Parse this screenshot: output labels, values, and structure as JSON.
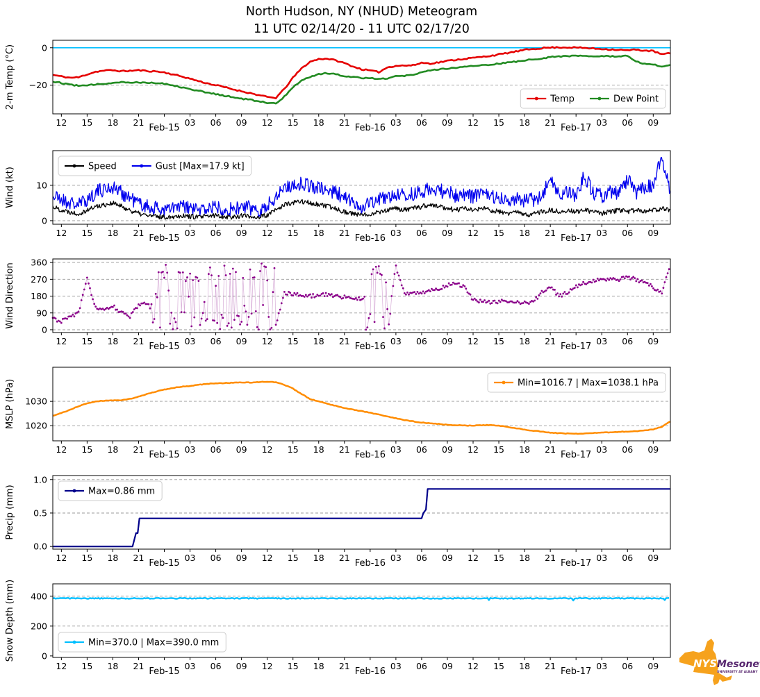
{
  "title": {
    "line1": "North Hudson, NY (NHUD) Meteogram",
    "line2": "11 UTC 02/14/20 - 11 UTC 02/17/20"
  },
  "x_axis": {
    "start": "11 UTC 02/14/20",
    "end": "11 UTC 02/17/20",
    "span_hours": 72,
    "tick_hours": [
      1,
      4,
      7,
      10,
      13,
      16,
      19,
      22,
      25,
      28,
      31,
      34,
      37,
      40,
      43,
      46,
      49,
      52,
      55,
      58,
      61,
      64,
      67,
      70
    ],
    "tick_labels": [
      "12",
      "15",
      "18",
      "21",
      "Feb-15",
      "03",
      "06",
      "09",
      "12",
      "15",
      "18",
      "21",
      "Feb-16",
      "03",
      "06",
      "09",
      "12",
      "15",
      "18",
      "21",
      "Feb-17",
      "03",
      "06",
      "09"
    ]
  },
  "logo": {
    "nys": "NYS",
    "mesonet": "Mesonet",
    "subtext": "UNIVERSITY AT ALBANY",
    "gold": "#F6A21D",
    "purple": "#56256E"
  },
  "chart_data": [
    {
      "type": "line",
      "panel_name": "temp-panel",
      "ylabel": "2-m Temp (°C)",
      "x_unit": "hours since 11 UTC 02/14/20, hourly keypoints",
      "ylim": [
        -35.3,
        4.0
      ],
      "yticks": [
        0,
        -20
      ],
      "ytick_labels": [
        "0",
        "−20"
      ],
      "grid_ticks": [
        -20
      ],
      "refline": {
        "value": 0,
        "color": "#00BFFF"
      },
      "legend": {
        "position": "bottom-right",
        "items": [
          {
            "label": "Temp",
            "color": "#E50000"
          },
          {
            "label": "Dew Point",
            "color": "#228B22"
          }
        ]
      },
      "series": [
        {
          "name": "temp",
          "color": "#E50000",
          "width": 2.6,
          "noise": 0.35,
          "seed": 11,
          "res": 0.25,
          "values": [
            -14.5,
            -15.3,
            -16,
            -15.8,
            -14.2,
            -12.8,
            -12.2,
            -12,
            -12.5,
            -12.3,
            -12,
            -12.4,
            -12.6,
            -13.2,
            -14.2,
            -15.3,
            -16.5,
            -17.8,
            -19,
            -20,
            -21,
            -22.2,
            -23.2,
            -24.2,
            -25.3,
            -26.3,
            -26.8,
            -22,
            -16,
            -11,
            -7.5,
            -6,
            -5.8,
            -6.8,
            -8.2,
            -10,
            -11.5,
            -12.2,
            -13,
            -10.5,
            -9.6,
            -9.5,
            -9.4,
            -8,
            -8.4,
            -7.8,
            -7,
            -6.4,
            -5.9,
            -5.4,
            -4.9,
            -4.3,
            -3.6,
            -2.8,
            -2,
            -1.2,
            -0.6,
            -0.2,
            0.1,
            0.2,
            0.2,
            0.1,
            -0.1,
            -0.4,
            -0.6,
            -0.9,
            -1.1,
            -1.4,
            -1,
            -1.5,
            -1.8,
            -3.5,
            -3
          ]
        },
        {
          "name": "dew-point",
          "color": "#228B22",
          "width": 2.6,
          "noise": 0.35,
          "seed": 12,
          "res": 0.25,
          "values": [
            -18,
            -18.8,
            -19.6,
            -20.3,
            -20.2,
            -19.6,
            -19.2,
            -18.6,
            -18.3,
            -18.6,
            -18.4,
            -18.6,
            -18.8,
            -19.2,
            -20,
            -21,
            -22,
            -23,
            -24,
            -24.8,
            -25.6,
            -26.4,
            -27.2,
            -27.8,
            -28.6,
            -29.3,
            -29.8,
            -26,
            -21,
            -17.5,
            -15.5,
            -14,
            -13.6,
            -14.2,
            -15,
            -15.6,
            -16,
            -16.2,
            -16.5,
            -16.3,
            -15.2,
            -15,
            -14.5,
            -12.8,
            -12.2,
            -11.6,
            -11,
            -10.6,
            -10.2,
            -9.8,
            -9.4,
            -9,
            -8.5,
            -8,
            -7.4,
            -6.8,
            -6.2,
            -5.6,
            -5,
            -4.6,
            -4.4,
            -4.3,
            -4.4,
            -4.6,
            -4.5,
            -4.6,
            -4.8,
            -4.4,
            -7.5,
            -8.5,
            -9,
            -9.8,
            -9.2
          ]
        }
      ]
    },
    {
      "type": "line",
      "panel_name": "wind-panel",
      "ylabel": "Wind (kt)",
      "x_unit": "hours since 11 UTC 02/14/20, hourly keypoints",
      "ylim": [
        -1,
        19.8
      ],
      "yticks": [
        10,
        0
      ],
      "ytick_labels": [
        "10",
        "0"
      ],
      "grid_ticks": [
        10,
        0
      ],
      "legend": {
        "position": "top-left",
        "items": [
          {
            "label": "Speed",
            "color": "#000000"
          },
          {
            "label": "Gust [Max=17.9 kt]",
            "color": "#0000EE"
          }
        ]
      },
      "series": [
        {
          "name": "gust",
          "color": "#0000EE",
          "width": 1.3,
          "noise": 2.1,
          "seed": 21,
          "res": 0.0833,
          "min": 0,
          "max": 17.9,
          "values": [
            7,
            6,
            5,
            4.5,
            6,
            8,
            9,
            9.5,
            8,
            6.5,
            5,
            4,
            3.5,
            3,
            3.5,
            4,
            3.5,
            3,
            3.5,
            4,
            3.5,
            3,
            4,
            3.5,
            3,
            4,
            7,
            9.5,
            10,
            10.5,
            10,
            9,
            8.5,
            8,
            6.5,
            5,
            4,
            5,
            6,
            6.5,
            7.5,
            7,
            7.5,
            8,
            9,
            8.5,
            8,
            7,
            7.5,
            7,
            7.5,
            7,
            6.5,
            6,
            6.5,
            5.5,
            6,
            7,
            12,
            7,
            8,
            7,
            13,
            7.5,
            7,
            8,
            7.5,
            12,
            8,
            9,
            10,
            17.9,
            8
          ]
        },
        {
          "name": "speed",
          "color": "#000000",
          "width": 1.3,
          "noise": 0.7,
          "seed": 22,
          "res": 0.0833,
          "min": 0,
          "values": [
            4,
            3,
            2.5,
            2,
            3,
            4,
            4.5,
            5,
            4,
            3,
            2,
            1.5,
            1.2,
            1,
            1.2,
            1.5,
            1.2,
            1,
            1.2,
            1.5,
            1.2,
            1,
            1.5,
            1.2,
            1,
            1.5,
            3,
            4.5,
            5,
            5.5,
            5,
            4.5,
            4,
            3.5,
            2.5,
            2,
            1.5,
            2,
            2.5,
            3,
            3.5,
            3,
            3.5,
            4,
            4.5,
            4,
            3.5,
            3,
            3.5,
            3,
            3.5,
            3,
            2.5,
            2,
            2.5,
            1.5,
            2,
            2.5,
            3,
            2.5,
            3,
            2.5,
            3,
            2.5,
            2,
            2.5,
            3,
            2.5,
            3,
            2.5,
            3,
            3.5,
            3
          ]
        }
      ]
    },
    {
      "type": "scatter",
      "panel_name": "wind-direction-panel",
      "ylabel": "Wind Direction",
      "x_unit": "hours since 11 UTC 02/14/20, hourly keypoints",
      "ylim": [
        -15,
        379
      ],
      "yticks": [
        360,
        270,
        180,
        90,
        0
      ],
      "ytick_labels": [
        "360",
        "270",
        "180",
        "90",
        "0"
      ],
      "grid_ticks": [
        360,
        270,
        180,
        90,
        0
      ],
      "series": [
        {
          "name": "wind-direction",
          "style": "scatter",
          "color": "#8B008B",
          "line_color": "rgba(175,90,175,0.5)",
          "width": 0.7,
          "noise": 10,
          "seed": 31,
          "res": 0.1667,
          "min": 0,
          "max": 360,
          "erratic_windows": [
            [
              11.5,
              26
            ],
            [
              36.5,
              39.5
            ]
          ],
          "values": [
            60,
            45,
            70,
            90,
            270,
            120,
            100,
            130,
            90,
            70,
            130,
            140,
            80,
            350,
            20,
            300,
            40,
            330,
            60,
            280,
            30,
            340,
            90,
            310,
            50,
            320,
            30,
            200,
            190,
            185,
            180,
            185,
            190,
            180,
            175,
            170,
            165,
            175,
            350,
            30,
            340,
            190,
            195,
            200,
            210,
            220,
            240,
            250,
            230,
            160,
            150,
            145,
            150,
            155,
            150,
            145,
            150,
            200,
            230,
            180,
            200,
            230,
            250,
            260,
            270,
            275,
            270,
            280,
            270,
            250,
            230,
            190,
            355
          ]
        }
      ]
    },
    {
      "type": "line",
      "panel_name": "mslp-panel",
      "ylabel": "MSLP (hPa)",
      "x_unit": "hours since 11 UTC 02/14/20, hourly keypoints",
      "ylim": [
        1013.8,
        1044
      ],
      "yticks": [
        1030,
        1020
      ],
      "ytick_labels": [
        "1030",
        "1020"
      ],
      "grid_ticks": [
        1030,
        1020
      ],
      "legend": {
        "position": "top-right",
        "items": [
          {
            "label": "Min=1016.7 | Max=1038.1 hPa",
            "color": "#FF8C00"
          }
        ]
      },
      "series": [
        {
          "name": "mslp",
          "color": "#FF8C00",
          "width": 2.5,
          "noise": 0.12,
          "seed": 41,
          "res": 0.2,
          "values": [
            1024,
            1025.2,
            1026.5,
            1028,
            1029.2,
            1030,
            1030.3,
            1030.4,
            1030.5,
            1031,
            1032,
            1033,
            1034,
            1034.8,
            1035.5,
            1036,
            1036.3,
            1036.8,
            1037.2,
            1037.4,
            1037.5,
            1037.6,
            1037.8,
            1037.7,
            1037.9,
            1038.1,
            1037.8,
            1036.8,
            1035.2,
            1033,
            1031,
            1030,
            1029,
            1028.2,
            1027.3,
            1026.6,
            1026,
            1025.3,
            1024.6,
            1023.8,
            1023,
            1022.3,
            1021.8,
            1021.3,
            1021,
            1020.7,
            1020.4,
            1020.2,
            1020.1,
            1020,
            1020.2,
            1020.3,
            1020,
            1019.5,
            1019,
            1018.4,
            1018,
            1017.6,
            1017.2,
            1016.9,
            1016.8,
            1016.7,
            1016.8,
            1017,
            1017.2,
            1017.3,
            1017.5,
            1017.6,
            1017.8,
            1018,
            1018.5,
            1019.5,
            1021.8
          ]
        }
      ]
    },
    {
      "type": "line",
      "panel_name": "precip-panel",
      "ylabel": "Precip (mm)",
      "x_unit": "hours since 11 UTC 02/14/20, explicit step points",
      "ylim": [
        -0.04,
        1.06
      ],
      "yticks": [
        1.0,
        0.5,
        0.0
      ],
      "ytick_labels": [
        "1.0",
        "0.5",
        "0.0"
      ],
      "grid_ticks": [
        1.0,
        0.5
      ],
      "legend": {
        "position": "top-left",
        "items": [
          {
            "label": "Max=0.86 mm",
            "color": "#00008B"
          }
        ]
      },
      "series": [
        {
          "name": "precip",
          "color": "#00008B",
          "width": 2.2,
          "points": [
            [
              0,
              0
            ],
            [
              9.3,
              0
            ],
            [
              9.5,
              0.1
            ],
            [
              9.7,
              0.2
            ],
            [
              9.9,
              0.2
            ],
            [
              10.1,
              0.42
            ],
            [
              43,
              0.42
            ],
            [
              43.2,
              0.5
            ],
            [
              43.5,
              0.55
            ],
            [
              43.7,
              0.86
            ],
            [
              72,
              0.86
            ]
          ]
        }
      ]
    },
    {
      "type": "line",
      "panel_name": "snow-depth-panel",
      "ylabel": "Snow Depth (mm)",
      "x_unit": "hours since 11 UTC 02/14/20, constant with jitter",
      "ylim": [
        -10,
        483
      ],
      "yticks": [
        400,
        200,
        0
      ],
      "ytick_labels": [
        "400",
        "200",
        "0"
      ],
      "grid_ticks": [
        400,
        200
      ],
      "legend": {
        "position": "bottom-left",
        "items": [
          {
            "label": "Min=370.0 | Max=390.0 mm",
            "color": "#00BFFF"
          }
        ]
      },
      "series": [
        {
          "name": "snow-depth",
          "color": "#00BFFF",
          "width": 2.4,
          "noise": 3,
          "seed": 61,
          "res": 0.1667,
          "const_value": 386,
          "min": 370,
          "max": 390,
          "dip_chance": 0.012,
          "dip_base": 371,
          "dip_range": 4
        }
      ]
    }
  ]
}
